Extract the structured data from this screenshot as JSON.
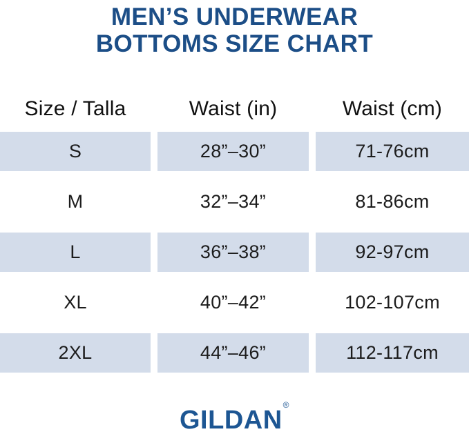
{
  "title": {
    "line1": "MEN’S UNDERWEAR",
    "line2": "BOTTOMS SIZE CHART"
  },
  "table": {
    "headers": [
      "Size / Talla",
      "Waist (in)",
      "Waist (cm)"
    ],
    "rows": [
      {
        "size": "S",
        "waist_in": "28”–30”",
        "waist_cm": "71-76cm"
      },
      {
        "size": "M",
        "waist_in": "32”–34”",
        "waist_cm": "81-86cm"
      },
      {
        "size": "L",
        "waist_in": "36”–38”",
        "waist_cm": "92-97cm"
      },
      {
        "size": "XL",
        "waist_in": "40”–42”",
        "waist_cm": "102-107cm"
      },
      {
        "size": "2XL",
        "waist_in": "44”–46”",
        "waist_cm": "112-117cm"
      }
    ]
  },
  "footer": {
    "brand": "GILDAN",
    "registered": "®"
  },
  "colors": {
    "title_blue": "#1c4e87",
    "logo_blue": "#1d5693",
    "row_shade": "#d3dcea",
    "cell_text": "#1c1c1c",
    "page_bg": "#ffffff"
  },
  "chart_data": {
    "type": "table",
    "title": "MEN’S UNDERWEAR BOTTOMS SIZE CHART",
    "columns": [
      "Size / Talla",
      "Waist (in)",
      "Waist (cm)"
    ],
    "rows": [
      [
        "S",
        "28”–30”",
        "71-76cm"
      ],
      [
        "M",
        "32”–34”",
        "81-86cm"
      ],
      [
        "L",
        "36”–38”",
        "92-97cm"
      ],
      [
        "XL",
        "40”–42”",
        "102-107cm"
      ],
      [
        "2XL",
        "44”–46”",
        "112-117cm"
      ]
    ],
    "shaded_row_indices": [
      0,
      2,
      4
    ],
    "brand": "GILDAN"
  }
}
